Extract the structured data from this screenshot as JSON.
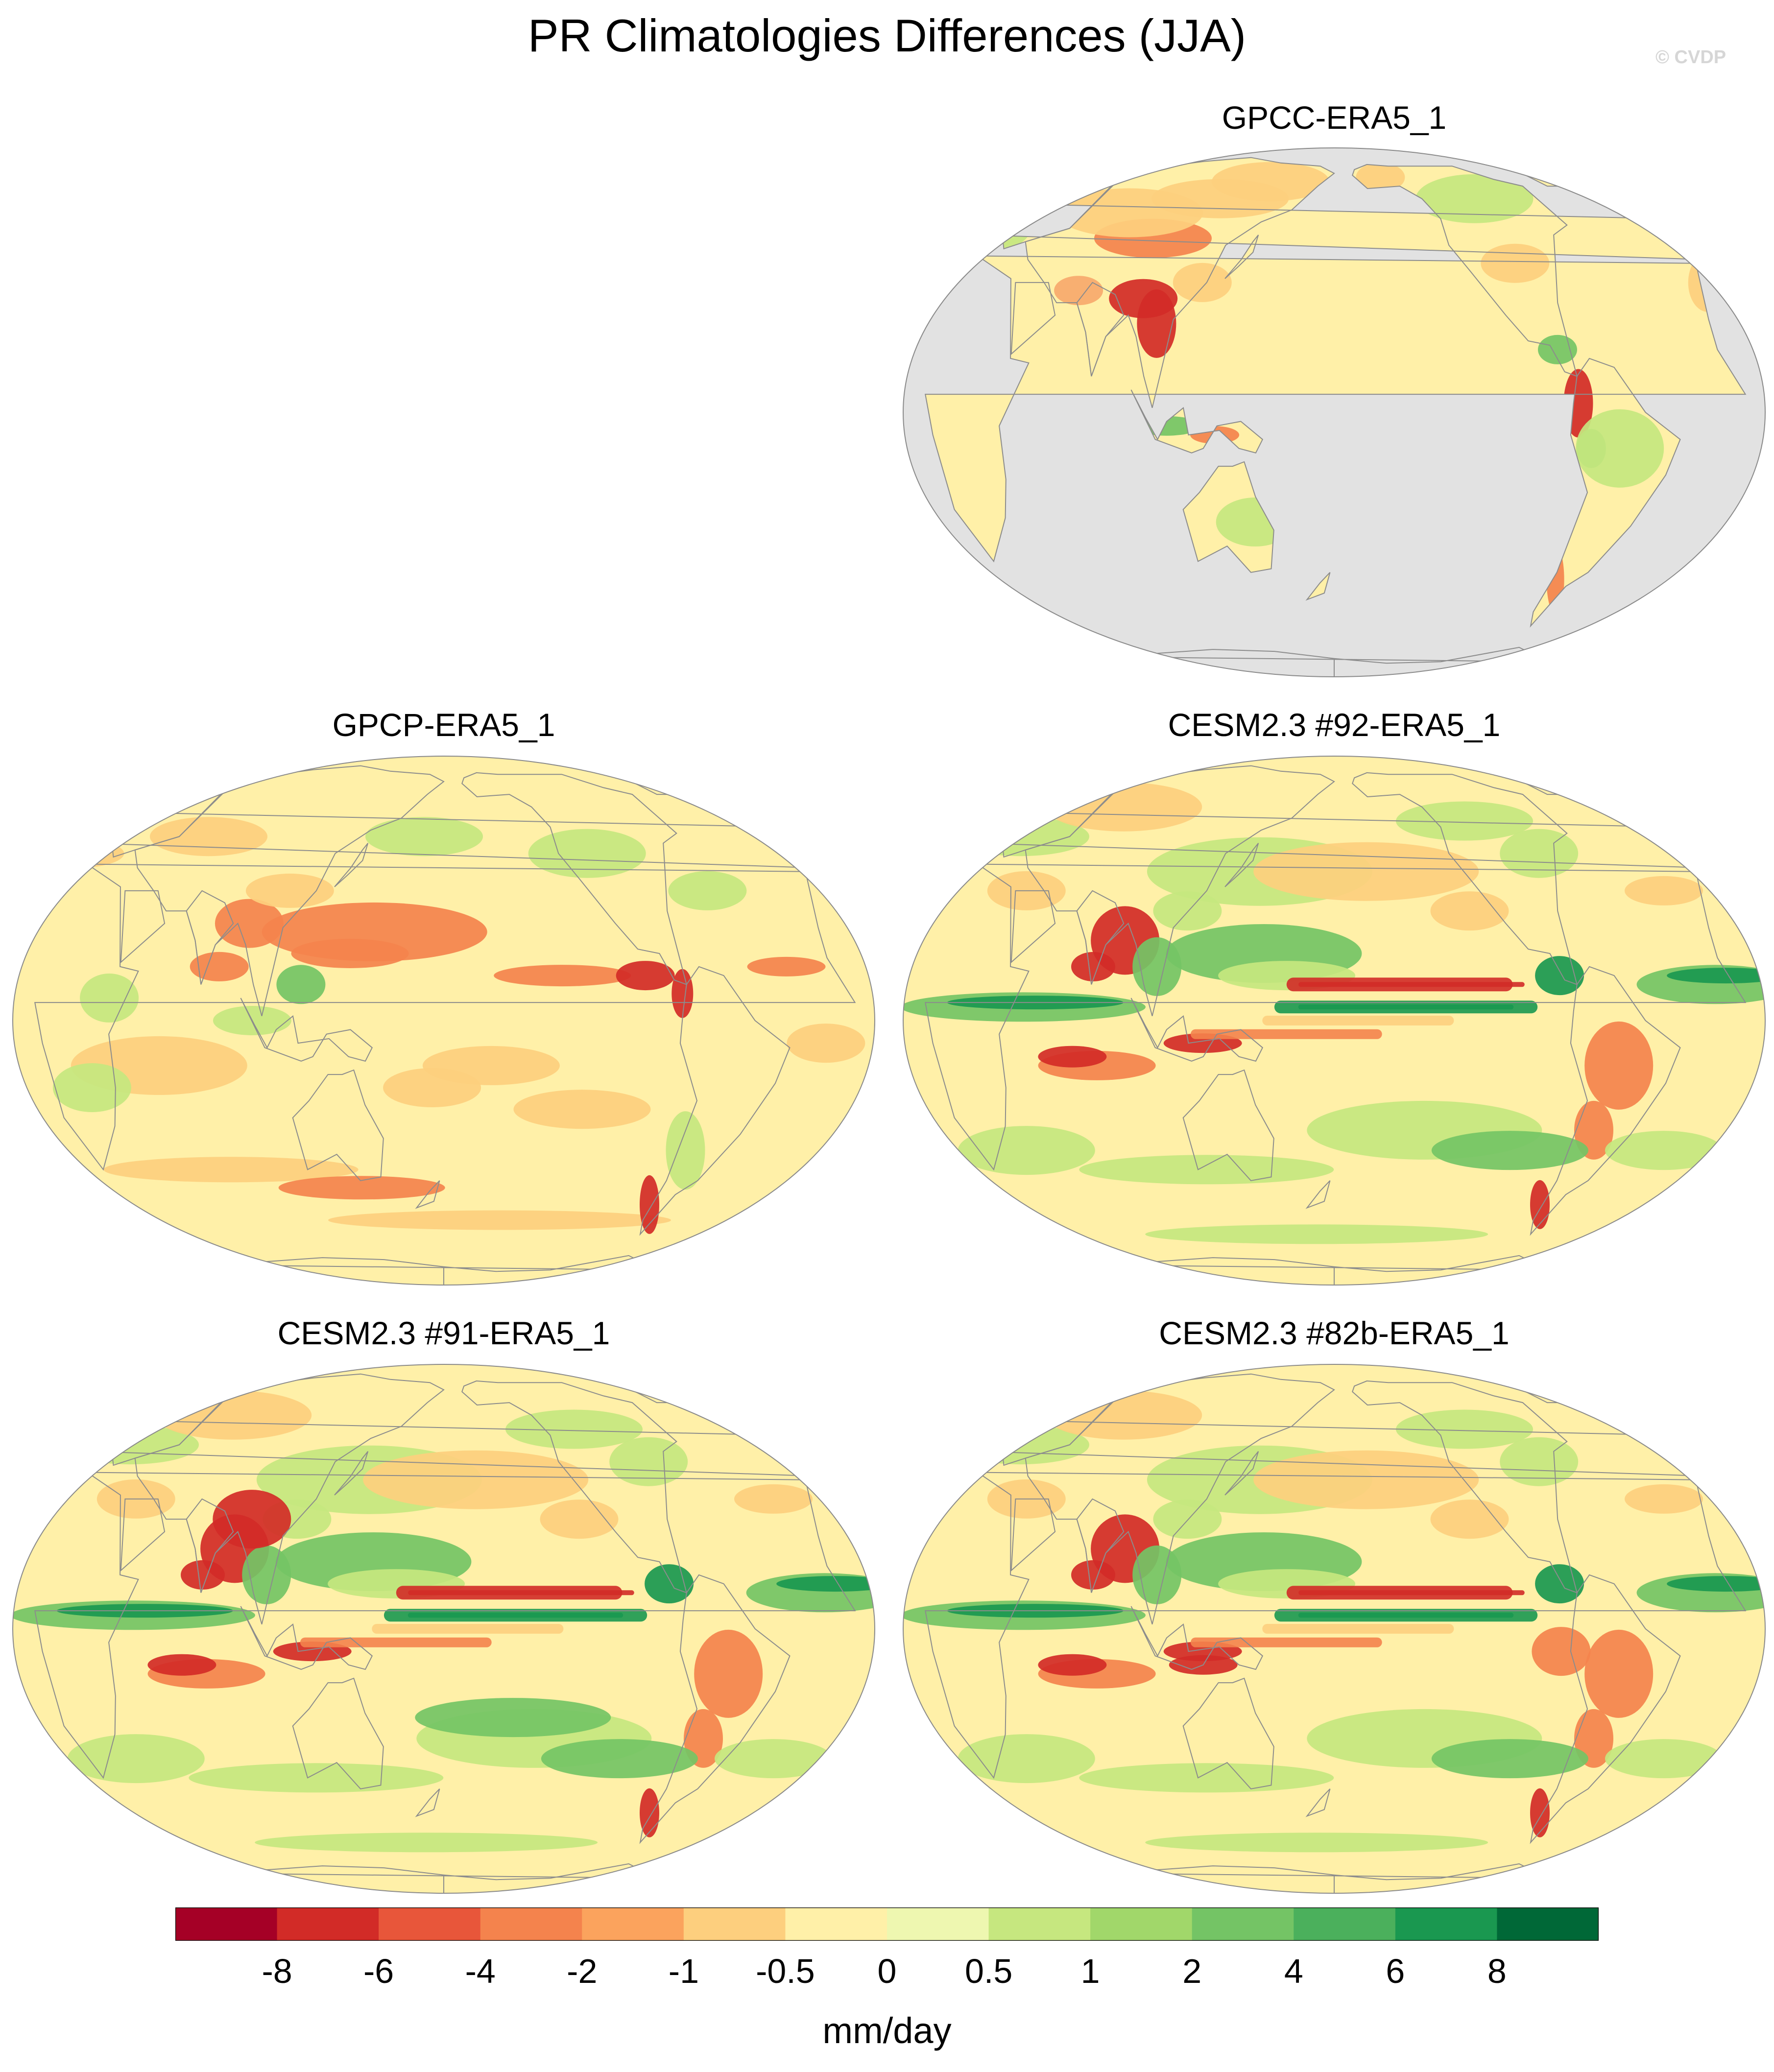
{
  "figure": {
    "title": "PR Climatologies Differences (JJA)",
    "credit": "© CVDP"
  },
  "panels": [
    {
      "id": "gpcc",
      "title": "GPCC-ERA5_1",
      "land_only": true
    },
    {
      "id": "gpcp",
      "title": "GPCP-ERA5_1",
      "land_only": false
    },
    {
      "id": "cesm92",
      "title": "CESM2.3 #92-ERA5_1",
      "land_only": false
    },
    {
      "id": "cesm91",
      "title": "CESM2.3 #91-ERA5_1",
      "land_only": false
    },
    {
      "id": "cesm82b",
      "title": "CESM2.3 #82b-ERA5_1",
      "land_only": false
    }
  ],
  "colorbar": {
    "units": "mm/day",
    "labels": [
      "-8",
      "-6",
      "-4",
      "-2",
      "-1",
      "-0.5",
      "0",
      "0.5",
      "1",
      "2",
      "4",
      "6",
      "8"
    ],
    "colors": [
      "#a50026",
      "#d22b27",
      "#e8563a",
      "#f4834d",
      "#fba35d",
      "#fdcf7e",
      "#fff0a8",
      "#eef7b0",
      "#c6e77f",
      "#a1d76a",
      "#74c465",
      "#4bb05c",
      "#1a9850",
      "#006837"
    ]
  },
  "map_colors": {
    "ocean_mask": "#e2e2e2",
    "coastline": "#8c8c8c",
    "neutral": "#fff0a8",
    "light_dry": "#fdcf7e",
    "dry": "#f4834d",
    "very_dry": "#d22b27",
    "light_wet": "#c6e77f",
    "wet": "#74c465",
    "very_wet": "#1a9850"
  }
}
